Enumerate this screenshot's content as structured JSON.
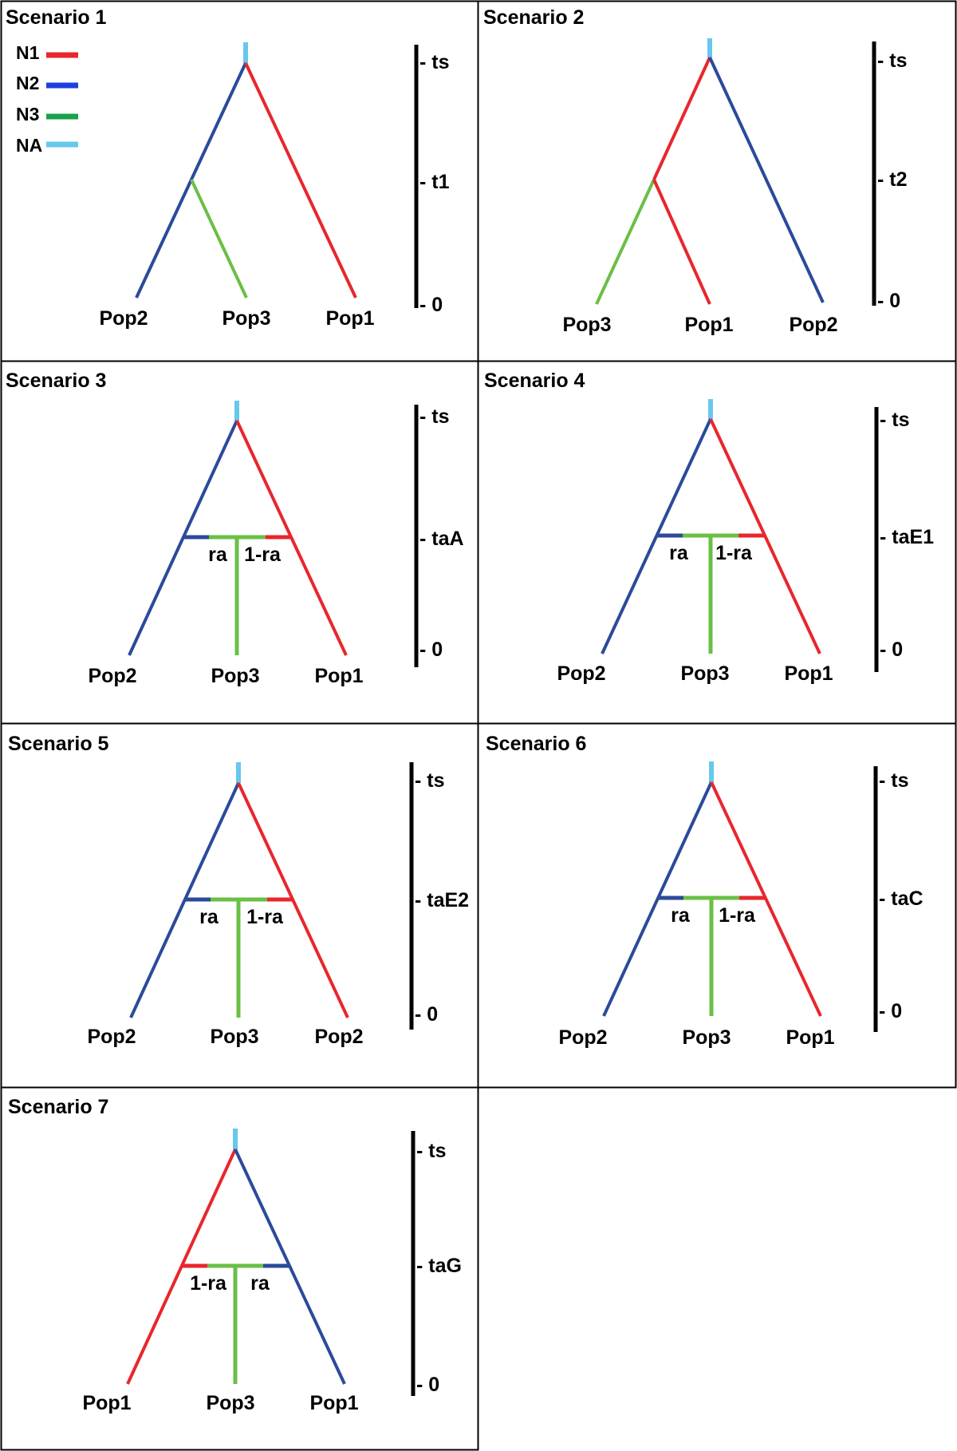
{
  "colors": {
    "N1": "#e8262d",
    "N2": "#2b4a9b",
    "N3": "#6abf45",
    "NA": "#66c8ec",
    "legend_N2": "#1c3fe0",
    "legend_N3": "#17a34a",
    "frame": "#000000"
  },
  "legend": [
    {
      "label": "N1",
      "color_key": "N1"
    },
    {
      "label": "N2",
      "color_key": "legend_N2"
    },
    {
      "label": "N3",
      "color_key": "legend_N3"
    },
    {
      "label": "NA",
      "color_key": "NA"
    }
  ],
  "scenarios": [
    {
      "title": "Scenario 1",
      "type": "split",
      "ticks": [
        "- ts",
        "- t1",
        "- 0"
      ],
      "pops": [
        "Pop2",
        "Pop3",
        "Pop1"
      ],
      "branch_colors": {
        "left": "N2",
        "right": "N1",
        "inner_left": "N2",
        "inner_right": "N3"
      }
    },
    {
      "title": "Scenario 2",
      "type": "split_right",
      "ticks": [
        "- ts",
        "- t2",
        "- 0"
      ],
      "pops": [
        "Pop3",
        "Pop1",
        "Pop2"
      ],
      "branch_colors": {
        "left": "N1",
        "right": "N2",
        "inner_left": "N3",
        "inner_right": "N1"
      }
    },
    {
      "title": "Scenario 3",
      "type": "admix",
      "ticks": [
        "- ts",
        "- taA",
        "- 0"
      ],
      "pops": [
        "Pop2",
        "Pop3",
        "Pop1"
      ],
      "ra_labels": [
        "ra",
        "1-ra"
      ],
      "branch_colors": {
        "left": "N2",
        "right": "N1"
      }
    },
    {
      "title": "Scenario 4",
      "type": "admix",
      "ticks": [
        "- ts",
        "- taE1",
        "- 0"
      ],
      "pops": [
        "Pop2",
        "Pop3",
        "Pop1"
      ],
      "ra_labels": [
        "ra",
        "1-ra"
      ],
      "branch_colors": {
        "left": "N2",
        "right": "N1"
      }
    },
    {
      "title": "Scenario 5",
      "type": "admix",
      "ticks": [
        "- ts",
        "- taE2",
        "- 0"
      ],
      "pops": [
        "Pop2",
        "Pop3",
        "Pop2"
      ],
      "ra_labels": [
        "ra",
        "1-ra"
      ],
      "branch_colors": {
        "left": "N2",
        "right": "N1"
      }
    },
    {
      "title": "Scenario 6",
      "type": "admix",
      "ticks": [
        "- ts",
        "- taC",
        "- 0"
      ],
      "pops": [
        "Pop2",
        "Pop3",
        "Pop1"
      ],
      "ra_labels": [
        "ra",
        "1-ra"
      ],
      "branch_colors": {
        "left": "N2",
        "right": "N1"
      }
    },
    {
      "title": "Scenario 7",
      "type": "admix",
      "ticks": [
        "- ts",
        "- taG",
        "- 0"
      ],
      "pops": [
        "Pop1",
        "Pop3",
        "Pop1"
      ],
      "ra_labels": [
        "1-ra",
        "ra"
      ],
      "branch_colors": {
        "left": "N1",
        "right": "N2"
      }
    }
  ]
}
